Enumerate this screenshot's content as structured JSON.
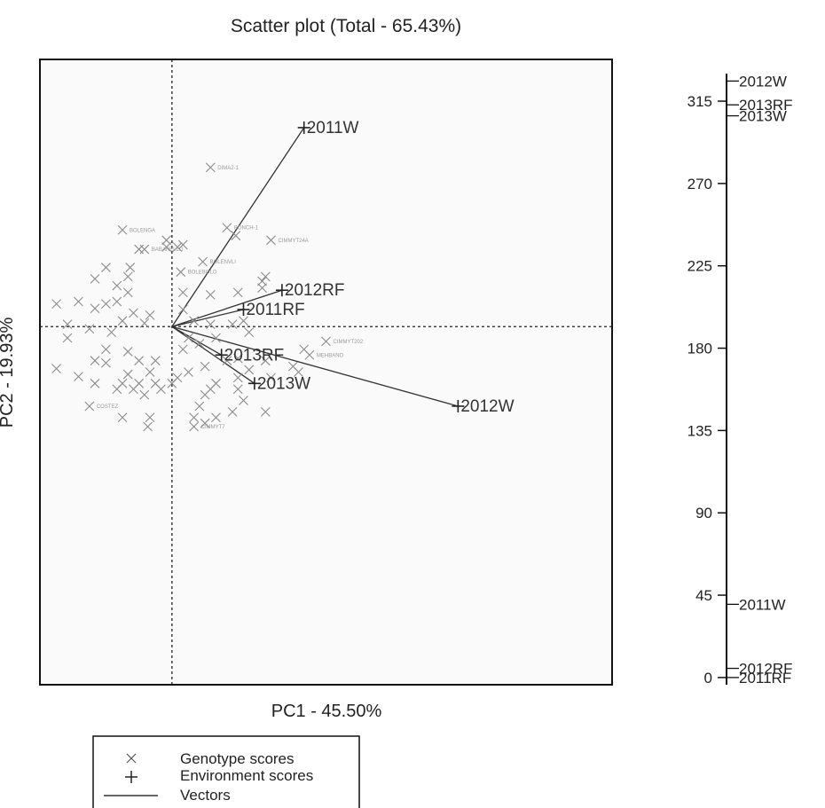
{
  "chart_data": {
    "type": "scatter",
    "title": "Scatter plot (Total - 65.43%)",
    "xlabel": "PC1 - 45.50%",
    "ylabel": "PC2 - 19.93%",
    "xlim": [
      -1.2,
      4.0
    ],
    "ylim": [
      -3.15,
      2.35
    ],
    "reference_lines": {
      "x": 0,
      "y": 0
    },
    "environment_scores": [
      {
        "label": "2011W",
        "x": 1.2,
        "y": 1.75
      },
      {
        "label": "2012RF",
        "x": 1.0,
        "y": 0.32
      },
      {
        "label": "2011RF",
        "x": 0.65,
        "y": 0.15
      },
      {
        "label": "2013RF",
        "x": 0.45,
        "y": -0.25
      },
      {
        "label": "2013W",
        "x": 0.75,
        "y": -0.5
      },
      {
        "label": "2012W",
        "x": 2.6,
        "y": -0.7
      }
    ],
    "genotype_scores": [
      {
        "label": "DIMA2-1",
        "x": 0.35,
        "y": 1.4
      },
      {
        "label": "BOLENGA",
        "x": -0.45,
        "y": 0.85
      },
      {
        "label": "",
        "x": -0.05,
        "y": 0.76
      },
      {
        "label": "BONCH-1",
        "x": 0.5,
        "y": 0.87
      },
      {
        "label": "",
        "x": 0.58,
        "y": 0.8
      },
      {
        "label": "CIMMYT24A",
        "x": 0.9,
        "y": 0.76
      },
      {
        "label": "BABARELLO",
        "x": -0.25,
        "y": 0.68
      },
      {
        "label": "",
        "x": -0.3,
        "y": 0.68
      },
      {
        "label": "",
        "x": -0.05,
        "y": 0.7
      },
      {
        "label": "",
        "x": 0.05,
        "y": 0.7
      },
      {
        "label": "",
        "x": 0.1,
        "y": 0.72
      },
      {
        "label": "BOLENVLI",
        "x": 0.28,
        "y": 0.57
      },
      {
        "label": "BOLEBOLO",
        "x": 0.08,
        "y": 0.48
      },
      {
        "label": "",
        "x": -0.6,
        "y": 0.52
      },
      {
        "label": "",
        "x": -0.38,
        "y": 0.52
      },
      {
        "label": "",
        "x": -0.7,
        "y": 0.42
      },
      {
        "label": "",
        "x": -0.4,
        "y": 0.44
      },
      {
        "label": "",
        "x": -0.5,
        "y": 0.36
      },
      {
        "label": "",
        "x": -0.4,
        "y": 0.3
      },
      {
        "label": "",
        "x": 0.1,
        "y": 0.3
      },
      {
        "label": "",
        "x": 0.6,
        "y": 0.3
      },
      {
        "label": "",
        "x": 0.82,
        "y": 0.34
      },
      {
        "label": "",
        "x": 0.85,
        "y": 0.44
      },
      {
        "label": "",
        "x": 0.82,
        "y": 0.4
      },
      {
        "label": "",
        "x": 0.35,
        "y": 0.28
      },
      {
        "label": "",
        "x": -1.05,
        "y": 0.2
      },
      {
        "label": "",
        "x": -0.85,
        "y": 0.22
      },
      {
        "label": "",
        "x": -0.7,
        "y": 0.16
      },
      {
        "label": "",
        "x": -0.6,
        "y": 0.2
      },
      {
        "label": "",
        "x": -0.5,
        "y": 0.22
      },
      {
        "label": "",
        "x": -0.35,
        "y": 0.12
      },
      {
        "label": "",
        "x": -0.2,
        "y": 0.1
      },
      {
        "label": "",
        "x": -0.25,
        "y": 0.03
      },
      {
        "label": "",
        "x": -0.45,
        "y": 0.05
      },
      {
        "label": "",
        "x": -0.95,
        "y": 0.02
      },
      {
        "label": "",
        "x": -0.75,
        "y": -0.02
      },
      {
        "label": "",
        "x": -0.55,
        "y": -0.05
      },
      {
        "label": "",
        "x": -0.95,
        "y": -0.1
      },
      {
        "label": "",
        "x": 0.1,
        "y": 0.15
      },
      {
        "label": "",
        "x": 0.2,
        "y": 0.05
      },
      {
        "label": "",
        "x": 0.35,
        "y": 0.02
      },
      {
        "label": "",
        "x": 0.55,
        "y": 0.02
      },
      {
        "label": "",
        "x": 0.65,
        "y": 0.05
      },
      {
        "label": "",
        "x": 0.7,
        "y": -0.05
      },
      {
        "label": "",
        "x": 0.15,
        "y": -0.1
      },
      {
        "label": "",
        "x": 0.1,
        "y": -0.2
      },
      {
        "label": "",
        "x": 0.25,
        "y": -0.15
      },
      {
        "label": "",
        "x": 0.4,
        "y": -0.1
      },
      {
        "label": "",
        "x": -0.6,
        "y": -0.2
      },
      {
        "label": "",
        "x": -0.4,
        "y": -0.22
      },
      {
        "label": "",
        "x": -0.3,
        "y": -0.3
      },
      {
        "label": "",
        "x": -0.15,
        "y": -0.3
      },
      {
        "label": "",
        "x": -0.6,
        "y": -0.32
      },
      {
        "label": "",
        "x": -0.7,
        "y": -0.3
      },
      {
        "label": "",
        "x": -0.2,
        "y": -0.4
      },
      {
        "label": "",
        "x": -0.4,
        "y": -0.42
      },
      {
        "label": "",
        "x": -0.45,
        "y": -0.5
      },
      {
        "label": "",
        "x": -0.3,
        "y": -0.5
      },
      {
        "label": "",
        "x": -0.15,
        "y": -0.5
      },
      {
        "label": "",
        "x": 0.0,
        "y": -0.5
      },
      {
        "label": "",
        "x": 0.05,
        "y": -0.45
      },
      {
        "label": "",
        "x": 0.15,
        "y": -0.4
      },
      {
        "label": "",
        "x": 0.3,
        "y": -0.35
      },
      {
        "label": "",
        "x": 0.5,
        "y": -0.3
      },
      {
        "label": "",
        "x": 0.6,
        "y": -0.28
      },
      {
        "label": "",
        "x": 0.85,
        "y": -0.3
      },
      {
        "label": "",
        "x": 0.6,
        "y": -0.45
      },
      {
        "label": "",
        "x": 0.4,
        "y": -0.5
      },
      {
        "label": "",
        "x": 0.35,
        "y": -0.55
      },
      {
        "label": "",
        "x": 1.2,
        "y": -0.2
      },
      {
        "label": "CIMMYT202",
        "x": 1.4,
        "y": -0.13
      },
      {
        "label": "MEHBANO",
        "x": 1.25,
        "y": -0.25
      },
      {
        "label": "",
        "x": 0.7,
        "y": -0.38
      },
      {
        "label": "",
        "x": 1.1,
        "y": -0.35
      },
      {
        "label": "",
        "x": 1.15,
        "y": -0.4
      },
      {
        "label": "",
        "x": 0.9,
        "y": -0.45
      },
      {
        "label": "",
        "x": -1.05,
        "y": -0.37
      },
      {
        "label": "",
        "x": -0.85,
        "y": -0.44
      },
      {
        "label": "",
        "x": -0.7,
        "y": -0.5
      },
      {
        "label": "",
        "x": -0.5,
        "y": -0.55
      },
      {
        "label": "",
        "x": -0.35,
        "y": -0.55
      },
      {
        "label": "",
        "x": -0.1,
        "y": -0.55
      },
      {
        "label": "",
        "x": -0.25,
        "y": -0.6
      },
      {
        "label": "",
        "x": 0.3,
        "y": -0.6
      },
      {
        "label": "",
        "x": 0.6,
        "y": -0.55
      },
      {
        "label": "",
        "x": 0.65,
        "y": -0.65
      },
      {
        "label": "",
        "x": 0.25,
        "y": -0.7
      },
      {
        "label": "COSTEZ",
        "x": -0.75,
        "y": -0.7
      },
      {
        "label": "",
        "x": -0.45,
        "y": -0.8
      },
      {
        "label": "",
        "x": -0.2,
        "y": -0.8
      },
      {
        "label": "",
        "x": 0.2,
        "y": -0.8
      },
      {
        "label": "",
        "x": 0.3,
        "y": -0.85
      },
      {
        "label": "",
        "x": 0.55,
        "y": -0.75
      },
      {
        "label": "",
        "x": 0.85,
        "y": -0.75
      },
      {
        "label": "",
        "x": 0.4,
        "y": -0.8
      },
      {
        "label": "CIMMYT7",
        "x": 0.2,
        "y": -0.88
      },
      {
        "label": "",
        "x": -0.22,
        "y": -0.88
      }
    ]
  },
  "side_axis": {
    "ticks": [
      0,
      45,
      90,
      135,
      180,
      225,
      270,
      315
    ],
    "range": [
      -2,
      332
    ],
    "labels": [
      {
        "label": "2012W",
        "value": 326
      },
      {
        "label": "2013RF",
        "value": 313
      },
      {
        "label": "2013W",
        "value": 307
      },
      {
        "label": "2011W",
        "value": 40
      },
      {
        "label": "2012RF",
        "value": 5
      },
      {
        "label": "2011RF",
        "value": 0
      }
    ]
  },
  "legend": {
    "items": [
      {
        "symbol": "cross-x",
        "label": "Genotype scores"
      },
      {
        "symbol": "cross-plus",
        "label": "Environment scores"
      },
      {
        "symbol": "line",
        "label": "Vectors"
      }
    ]
  }
}
